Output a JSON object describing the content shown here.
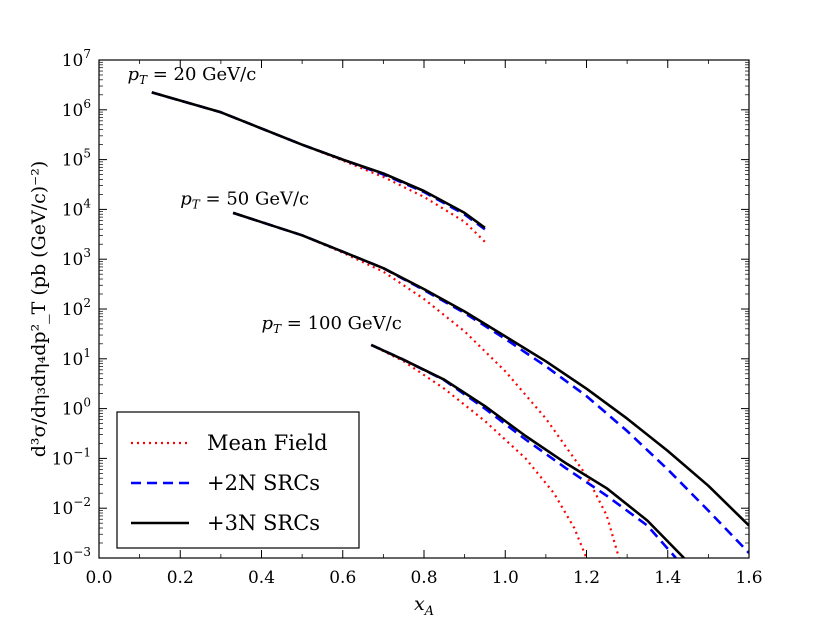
{
  "chart_data": {
    "type": "line",
    "xlabel": "x_A",
    "ylabel": "d³σ/dη₃dη₄dp²_T (pb (GeV/c)⁻²)",
    "xlim": [
      0.0,
      1.6
    ],
    "ylim_log10": [
      -3,
      7
    ],
    "yscale": "log",
    "grid": false,
    "legend_position": "lower-left",
    "x_ticks": [
      "0.0",
      "0.2",
      "0.4",
      "0.6",
      "0.8",
      "1.0",
      "1.2",
      "1.4",
      "1.6"
    ],
    "y_ticks": [
      {
        "base": "10",
        "exp": "7"
      },
      {
        "base": "10",
        "exp": "6"
      },
      {
        "base": "10",
        "exp": "5"
      },
      {
        "base": "10",
        "exp": "4"
      },
      {
        "base": "10",
        "exp": "3"
      },
      {
        "base": "10",
        "exp": "2"
      },
      {
        "base": "10",
        "exp": "1"
      },
      {
        "base": "10",
        "exp": "0"
      },
      {
        "base": "10",
        "exp": "−1"
      },
      {
        "base": "10",
        "exp": "−2"
      },
      {
        "base": "10",
        "exp": "−3"
      }
    ],
    "annotations": [
      {
        "text": "p_T = 20 GeV/c",
        "x": 0.07,
        "y_log10": 6.6
      },
      {
        "text": "p_T = 50 GeV/c",
        "x": 0.2,
        "y_log10": 4.1
      },
      {
        "text": "p_T = 100 GeV/c",
        "x": 0.4,
        "y_log10": 1.6
      }
    ],
    "legend": [
      {
        "label": "Mean Field",
        "style": "dotted",
        "color": "#ff0000"
      },
      {
        "label": "+2N SRCs",
        "style": "dashed",
        "color": "#0000ff"
      },
      {
        "label": "+3N SRCs",
        "style": "solid",
        "color": "#000000"
      }
    ],
    "series": [
      {
        "name": "Mean Field",
        "group": "pT20",
        "style": "dotted",
        "color": "#ff0000",
        "points": [
          [
            0.13,
            6.35
          ],
          [
            0.3,
            5.95
          ],
          [
            0.5,
            5.3
          ],
          [
            0.6,
            4.98
          ],
          [
            0.7,
            4.65
          ],
          [
            0.8,
            4.25
          ],
          [
            0.9,
            3.75
          ],
          [
            0.95,
            3.35
          ]
        ]
      },
      {
        "name": "+2N SRCs",
        "group": "pT20",
        "style": "dashed",
        "color": "#0000ff",
        "points": [
          [
            0.13,
            6.35
          ],
          [
            0.3,
            5.95
          ],
          [
            0.5,
            5.3
          ],
          [
            0.6,
            5.0
          ],
          [
            0.7,
            4.7
          ],
          [
            0.8,
            4.35
          ],
          [
            0.9,
            3.9
          ],
          [
            0.95,
            3.6
          ]
        ]
      },
      {
        "name": "+3N SRCs",
        "group": "pT20",
        "style": "solid",
        "color": "#000000",
        "points": [
          [
            0.13,
            6.35
          ],
          [
            0.3,
            5.95
          ],
          [
            0.5,
            5.3
          ],
          [
            0.6,
            5.0
          ],
          [
            0.7,
            4.72
          ],
          [
            0.8,
            4.37
          ],
          [
            0.9,
            3.93
          ],
          [
            0.95,
            3.63
          ]
        ]
      },
      {
        "name": "Mean Field",
        "group": "pT50",
        "style": "dotted",
        "color": "#ff0000",
        "points": [
          [
            0.33,
            3.93
          ],
          [
            0.5,
            3.48
          ],
          [
            0.6,
            3.13
          ],
          [
            0.7,
            2.75
          ],
          [
            0.8,
            2.2
          ],
          [
            0.9,
            1.55
          ],
          [
            1.0,
            0.75
          ],
          [
            1.1,
            -0.2
          ],
          [
            1.2,
            -1.35
          ],
          [
            1.25,
            -2.15
          ],
          [
            1.28,
            -3.0
          ]
        ]
      },
      {
        "name": "+2N SRCs",
        "group": "pT50",
        "style": "dashed",
        "color": "#0000ff",
        "points": [
          [
            0.33,
            3.93
          ],
          [
            0.5,
            3.48
          ],
          [
            0.6,
            3.15
          ],
          [
            0.7,
            2.82
          ],
          [
            0.8,
            2.38
          ],
          [
            0.9,
            1.92
          ],
          [
            1.0,
            1.4
          ],
          [
            1.1,
            0.85
          ],
          [
            1.2,
            0.25
          ],
          [
            1.3,
            -0.45
          ],
          [
            1.4,
            -1.22
          ],
          [
            1.5,
            -2.05
          ],
          [
            1.6,
            -2.9
          ]
        ]
      },
      {
        "name": "+3N SRCs",
        "group": "pT50",
        "style": "solid",
        "color": "#000000",
        "points": [
          [
            0.33,
            3.93
          ],
          [
            0.5,
            3.48
          ],
          [
            0.6,
            3.15
          ],
          [
            0.7,
            2.82
          ],
          [
            0.8,
            2.4
          ],
          [
            0.9,
            1.95
          ],
          [
            1.0,
            1.45
          ],
          [
            1.1,
            0.95
          ],
          [
            1.2,
            0.4
          ],
          [
            1.3,
            -0.2
          ],
          [
            1.4,
            -0.85
          ],
          [
            1.5,
            -1.55
          ],
          [
            1.6,
            -2.35
          ]
        ]
      },
      {
        "name": "Mean Field",
        "group": "pT100",
        "style": "dotted",
        "color": "#ff0000",
        "points": [
          [
            0.67,
            1.28
          ],
          [
            0.75,
            0.95
          ],
          [
            0.85,
            0.4
          ],
          [
            0.95,
            -0.25
          ],
          [
            1.05,
            -1.0
          ],
          [
            1.12,
            -1.7
          ],
          [
            1.17,
            -2.4
          ],
          [
            1.2,
            -3.0
          ]
        ]
      },
      {
        "name": "+2N SRCs",
        "group": "pT100",
        "style": "dashed",
        "color": "#0000ff",
        "points": [
          [
            0.67,
            1.28
          ],
          [
            0.75,
            0.98
          ],
          [
            0.85,
            0.57
          ],
          [
            0.95,
            0.0
          ],
          [
            1.05,
            -0.62
          ],
          [
            1.15,
            -1.2
          ],
          [
            1.25,
            -1.75
          ],
          [
            1.35,
            -2.35
          ],
          [
            1.42,
            -3.0
          ]
        ]
      },
      {
        "name": "+3N SRCs",
        "group": "pT100",
        "style": "solid",
        "color": "#000000",
        "points": [
          [
            0.67,
            1.28
          ],
          [
            0.75,
            0.98
          ],
          [
            0.85,
            0.58
          ],
          [
            0.95,
            0.05
          ],
          [
            1.05,
            -0.55
          ],
          [
            1.15,
            -1.1
          ],
          [
            1.25,
            -1.6
          ],
          [
            1.35,
            -2.25
          ],
          [
            1.44,
            -3.0
          ]
        ]
      }
    ]
  }
}
